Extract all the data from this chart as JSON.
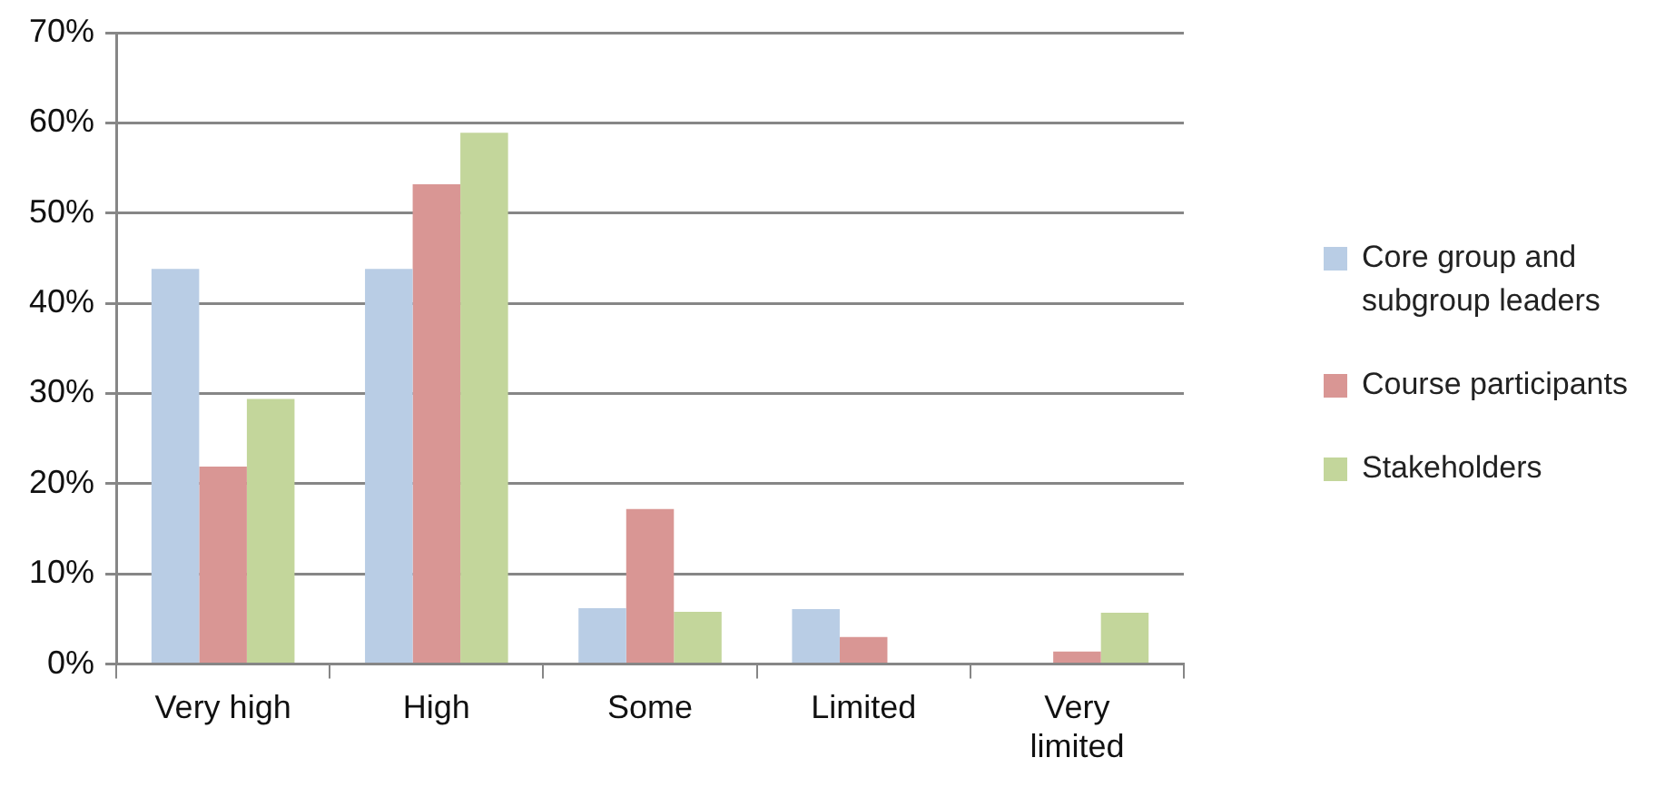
{
  "chart_data": {
    "type": "bar",
    "categories": [
      "Very high",
      "High",
      "Some",
      "Limited",
      "Very limited"
    ],
    "series": [
      {
        "name": "Core group and subgroup leaders",
        "color": "#b9cde5",
        "values": [
          43.8,
          43.8,
          6.2,
          6.1,
          0
        ]
      },
      {
        "name": "Course participants",
        "color": "#d99694",
        "values": [
          21.9,
          53.2,
          17.2,
          3.0,
          1.4
        ]
      },
      {
        "name": "Stakeholders",
        "color": "#c3d69b",
        "values": [
          29.4,
          58.9,
          5.8,
          0,
          5.7
        ]
      }
    ],
    "ylim": [
      0,
      70
    ],
    "yticks": [
      {
        "value": 0,
        "label": "0%"
      },
      {
        "value": 10,
        "label": "10%"
      },
      {
        "value": 20,
        "label": "20%"
      },
      {
        "value": 30,
        "label": "30%"
      },
      {
        "value": 40,
        "label": "40%"
      },
      {
        "value": 50,
        "label": "50%"
      },
      {
        "value": 60,
        "label": "60%"
      },
      {
        "value": 70,
        "label": "70%"
      }
    ],
    "grid": "y",
    "legend": "right"
  }
}
